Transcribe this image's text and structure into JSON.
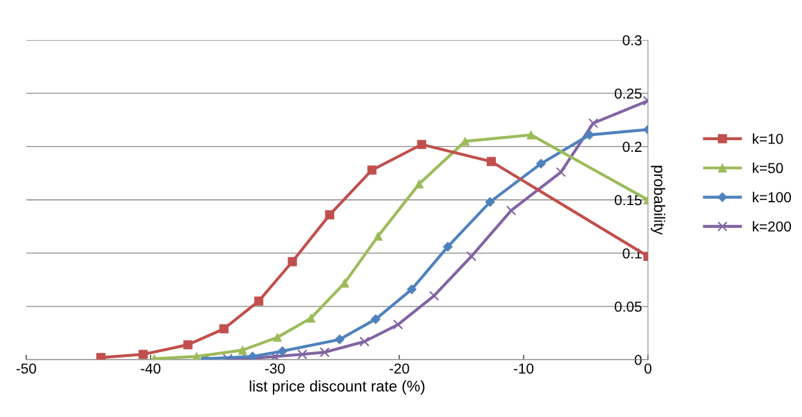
{
  "chart_data": {
    "type": "line",
    "xlabel": "list price discount rate (%)",
    "ylabel": "probability",
    "xlim": [
      -50,
      0
    ],
    "xticks": [
      -50,
      -40,
      -30,
      -20,
      -10,
      0
    ],
    "ylim": [
      0,
      0.3
    ],
    "yticks": [
      0,
      0.05,
      0.1,
      0.15,
      0.2,
      0.25,
      0.3
    ],
    "grid": "y",
    "legend": "right",
    "line_style": "solid",
    "series": [
      {
        "name": "k=10",
        "color": "#c0504d",
        "marker": "square",
        "x": [
          -44.0,
          -40.6,
          -37.0,
          -34.1,
          -31.3,
          -28.6,
          -25.6,
          -22.2,
          -18.2,
          -12.6,
          0
        ],
        "values": [
          0.002,
          0.005,
          0.014,
          0.029,
          0.055,
          0.092,
          0.136,
          0.178,
          0.202,
          0.186,
          0.097
        ]
      },
      {
        "name": "k=50",
        "color": "#9bbb59",
        "marker": "triangle",
        "x": [
          -39.7,
          -36.3,
          -32.6,
          -29.8,
          -27.1,
          -24.4,
          -21.7,
          -18.4,
          -14.7,
          -9.4,
          0
        ],
        "values": [
          0.001,
          0.003,
          0.009,
          0.021,
          0.039,
          0.072,
          0.116,
          0.165,
          0.205,
          0.211,
          0.15
        ]
      },
      {
        "name": "k=100",
        "color": "#4f81bd",
        "marker": "diamond",
        "x": [
          -35.6,
          -31.8,
          -29.4,
          -24.8,
          -21.9,
          -19.0,
          -16.1,
          -12.7,
          -8.6,
          -4.7,
          0
        ],
        "values": [
          0.001,
          0.003,
          0.008,
          0.019,
          0.038,
          0.066,
          0.106,
          0.148,
          0.184,
          0.211,
          0.216
        ]
      },
      {
        "name": "k=200",
        "color": "#8064a2",
        "marker": "cross",
        "x": [
          -33.8,
          -32.2,
          -30.0,
          -27.8,
          -26.0,
          -22.8,
          -20.1,
          -17.2,
          -14.2,
          -11.0,
          -7.0,
          -4.4,
          0
        ],
        "values": [
          0.001,
          0.001,
          0.003,
          0.005,
          0.007,
          0.017,
          0.033,
          0.06,
          0.097,
          0.14,
          0.176,
          0.222,
          0.243
        ]
      }
    ]
  }
}
